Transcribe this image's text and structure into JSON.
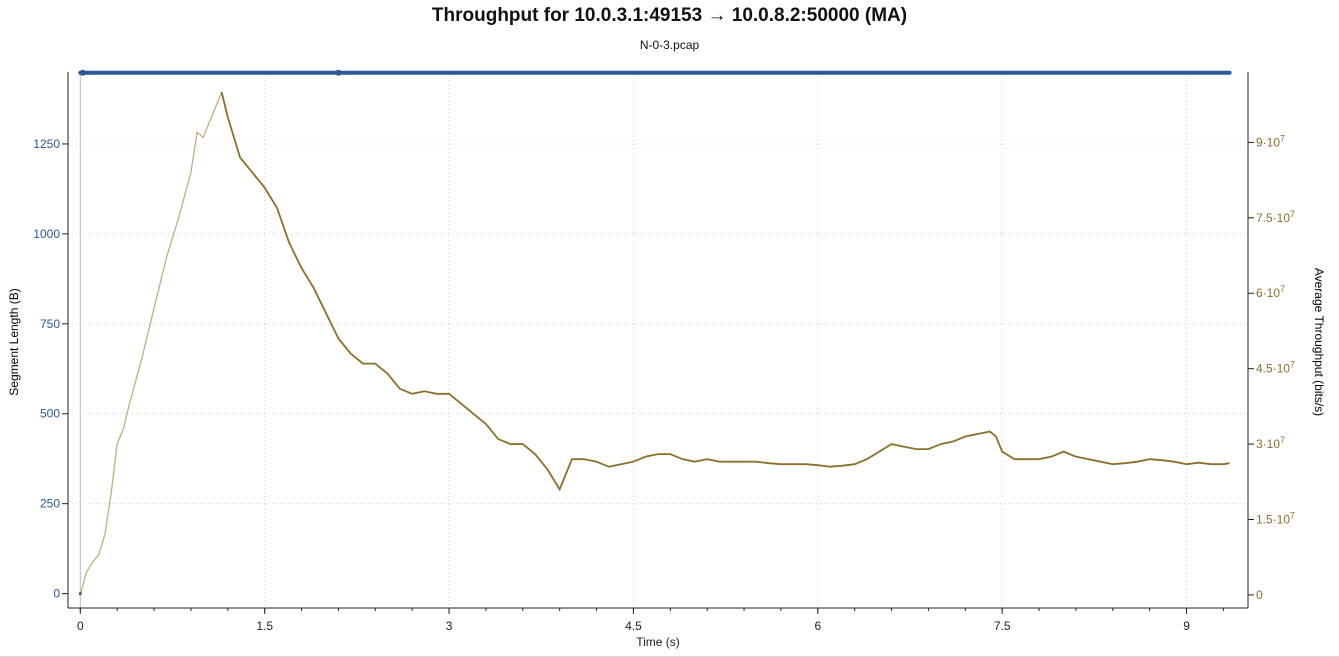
{
  "title": "Throughput for 10.0.3.1:49153 → 10.0.8.2:50000 (MA)",
  "subtitle": "N-0-3.pcap",
  "colors": {
    "segment": "#2b5797",
    "throughput": "#8b6f2a",
    "throughput_light": "#c4ab80",
    "grid": "#cfcfcf",
    "axis": "#222222"
  },
  "chart_data": {
    "type": "line",
    "xlabel": "Time (s)",
    "ylabel_left": "Segment Length (B)",
    "ylabel_right": "Average Throughput (bits/s)",
    "xlim": [
      -0.1,
      9.5
    ],
    "ylim_left": [
      -40,
      1450
    ],
    "ylim_right": [
      -2600000,
      104000000
    ],
    "x_ticks": [
      0,
      1.5,
      3,
      4.5,
      6,
      7.5,
      9
    ],
    "x_tick_labels": [
      "0",
      "1.5",
      "3",
      "4.5",
      "6",
      "7.5",
      "9"
    ],
    "y_left_ticks": [
      0,
      250,
      500,
      750,
      1000,
      1250
    ],
    "y_left_tick_labels": [
      "0",
      "250",
      "500",
      "750",
      "1000",
      "1250"
    ],
    "y_right_ticks": [
      0,
      15000000,
      30000000,
      45000000,
      60000000,
      75000000,
      90000000
    ],
    "y_right_tick_labels": [
      {
        "base": "0",
        "exp": ""
      },
      {
        "base": "1.5·10",
        "exp": "7"
      },
      {
        "base": "3·10",
        "exp": "7"
      },
      {
        "base": "4.5·10",
        "exp": "7"
      },
      {
        "base": "6·10",
        "exp": "7"
      },
      {
        "base": "7.5·10",
        "exp": "7"
      },
      {
        "base": "9·10",
        "exp": "7"
      }
    ],
    "grid": true,
    "series": [
      {
        "name": "Segment Length",
        "axis": "left",
        "style": "dots",
        "points": [
          [
            0,
            0
          ],
          [
            0.02,
            1448
          ],
          [
            2.1,
            1448
          ]
        ],
        "band": {
          "x_start": 0.0,
          "x_end": 9.35,
          "value": 1448
        }
      },
      {
        "name": "Average Throughput",
        "axis": "right",
        "style": "line",
        "x": [
          0.0,
          0.05,
          0.1,
          0.15,
          0.2,
          0.25,
          0.3,
          0.35,
          0.4,
          0.5,
          0.6,
          0.7,
          0.8,
          0.9,
          0.95,
          1.0,
          1.05,
          1.1,
          1.15,
          1.2,
          1.3,
          1.4,
          1.5,
          1.6,
          1.7,
          1.8,
          1.9,
          2.0,
          2.1,
          2.2,
          2.3,
          2.4,
          2.5,
          2.6,
          2.7,
          2.8,
          2.9,
          3.0,
          3.1,
          3.2,
          3.3,
          3.4,
          3.5,
          3.6,
          3.7,
          3.8,
          3.9,
          4.0,
          4.1,
          4.2,
          4.3,
          4.4,
          4.5,
          4.6,
          4.7,
          4.8,
          4.9,
          5.0,
          5.1,
          5.2,
          5.3,
          5.4,
          5.5,
          5.6,
          5.7,
          5.8,
          5.9,
          6.0,
          6.1,
          6.2,
          6.3,
          6.4,
          6.5,
          6.6,
          6.7,
          6.8,
          6.9,
          7.0,
          7.1,
          7.2,
          7.3,
          7.4,
          7.45,
          7.5,
          7.6,
          7.7,
          7.8,
          7.9,
          8.0,
          8.1,
          8.2,
          8.3,
          8.4,
          8.5,
          8.6,
          8.7,
          8.8,
          8.9,
          9.0,
          9.1,
          9.2,
          9.3,
          9.35
        ],
        "values": [
          0,
          4500000,
          6500000,
          8000000,
          12000000,
          20000000,
          30000000,
          33000000,
          38000000,
          47000000,
          57000000,
          67000000,
          75000000,
          84000000,
          92000000,
          91000000,
          94000000,
          97000000,
          100000000,
          95000000,
          87000000,
          84000000,
          81000000,
          77000000,
          70000000,
          65000000,
          61000000,
          56000000,
          51000000,
          48000000,
          46000000,
          46000000,
          44000000,
          41000000,
          40000000,
          40500000,
          40000000,
          40000000,
          38000000,
          36000000,
          34000000,
          31000000,
          30000000,
          30000000,
          28000000,
          25000000,
          21000000,
          27000000,
          27000000,
          26500000,
          25500000,
          26000000,
          26500000,
          27500000,
          28000000,
          28000000,
          27000000,
          26500000,
          27000000,
          26500000,
          26500000,
          26500000,
          26500000,
          26200000,
          26000000,
          26000000,
          26000000,
          25800000,
          25500000,
          25700000,
          26000000,
          27000000,
          28500000,
          30000000,
          29500000,
          29000000,
          29000000,
          30000000,
          30500000,
          31500000,
          32000000,
          32500000,
          31500000,
          28500000,
          27000000,
          27000000,
          27000000,
          27500000,
          28500000,
          27500000,
          27000000,
          26500000,
          26000000,
          26200000,
          26500000,
          27000000,
          26800000,
          26500000,
          26000000,
          26300000,
          26000000,
          26000000,
          26200000
        ]
      }
    ]
  }
}
